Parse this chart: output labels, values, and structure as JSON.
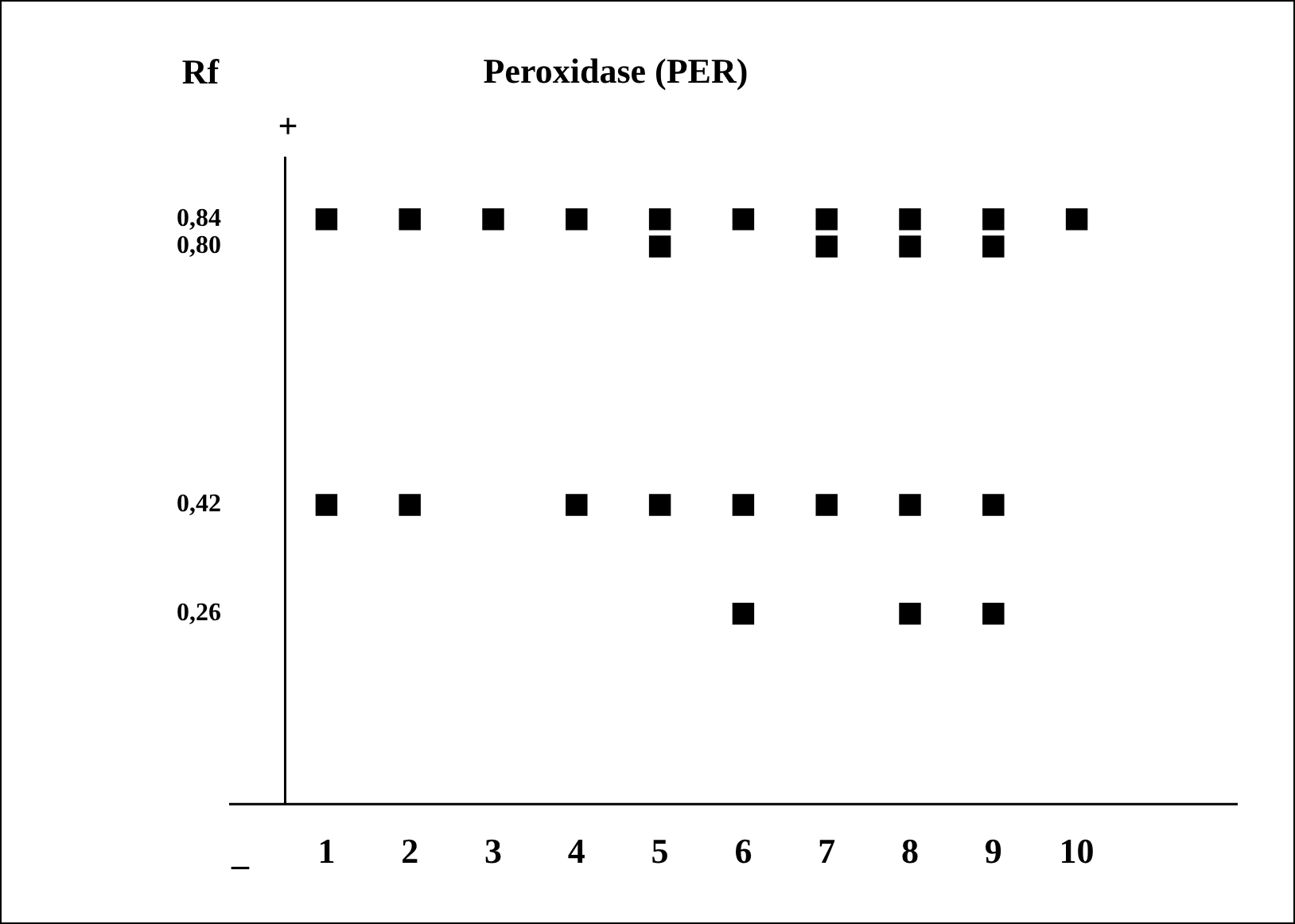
{
  "chart_data": {
    "type": "scatter",
    "title": "Peroxidase (PER)",
    "ylabel": "Rf",
    "annotations": [
      "+",
      "_"
    ],
    "categories": [
      "1",
      "2",
      "3",
      "4",
      "5",
      "6",
      "7",
      "8",
      "9",
      "10"
    ],
    "series": [
      {
        "color": "#000000",
        "values": [
          0.84,
          0.84,
          0.84,
          0.84,
          0.84,
          0.84,
          0.84,
          0.84,
          0.84,
          0.84
        ]
      },
      {
        "color": "#000000",
        "values": [
          null,
          null,
          null,
          null,
          0.8,
          null,
          0.8,
          0.8,
          0.8,
          null
        ]
      },
      {
        "color": "#000000",
        "values": [
          0.42,
          0.42,
          null,
          0.42,
          0.42,
          0.42,
          0.42,
          0.42,
          0.42,
          null
        ]
      },
      {
        "color": "#000000",
        "values": [
          null,
          null,
          null,
          null,
          null,
          0.26,
          null,
          0.26,
          0.26,
          null
        ]
      }
    ],
    "ylim": [
      -0.02,
      0.93
    ],
    "yticks": [
      {
        "value": 0.84,
        "label": "0,84"
      },
      {
        "value": 0.8,
        "label": "0,80"
      },
      {
        "value": 0.42,
        "label": "0,42"
      },
      {
        "value": 0.26,
        "label": "0,26"
      }
    ],
    "grid": false,
    "legend": false,
    "marker": "square"
  }
}
